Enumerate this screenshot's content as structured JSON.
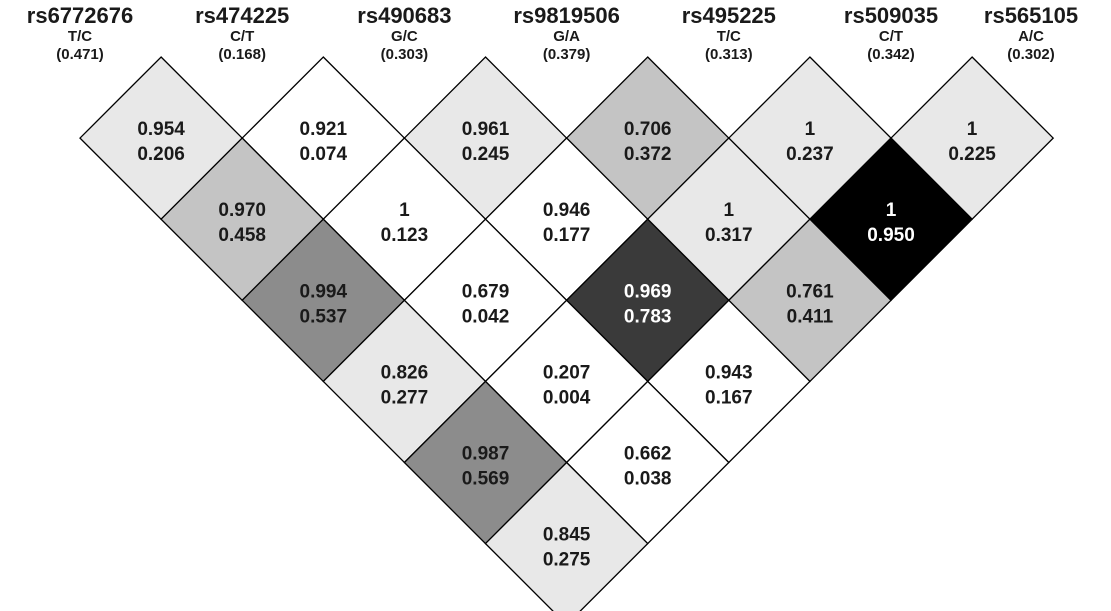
{
  "snps": [
    {
      "name": "rs6772676",
      "alleles": "T/C",
      "maf": "(0.471)"
    },
    {
      "name": "rs474225",
      "alleles": "C/T",
      "maf": "(0.168)"
    },
    {
      "name": "rs490683",
      "alleles": "G/C",
      "maf": "(0.303)"
    },
    {
      "name": "rs9819506",
      "alleles": "G/A",
      "maf": "(0.379)"
    },
    {
      "name": "rs495225",
      "alleles": "T/C",
      "maf": "(0.313)"
    },
    {
      "name": "rs509035",
      "alleles": "C/T",
      "maf": "(0.342)"
    },
    {
      "name": "rs565105",
      "alleles": "A/C",
      "maf": "(0.302)"
    }
  ],
  "cells": [
    {
      "i": 0,
      "j": 1,
      "d": "0.954",
      "r2": "0.206",
      "shade": "#e8e8e8",
      "text_color": "#1a1a1a"
    },
    {
      "i": 1,
      "j": 2,
      "d": "0.921",
      "r2": "0.074",
      "shade": "#ffffff",
      "text_color": "#1a1a1a"
    },
    {
      "i": 2,
      "j": 3,
      "d": "0.961",
      "r2": "0.245",
      "shade": "#e8e8e8",
      "text_color": "#1a1a1a"
    },
    {
      "i": 3,
      "j": 4,
      "d": "0.706",
      "r2": "0.372",
      "shade": "#c4c4c4",
      "text_color": "#1a1a1a"
    },
    {
      "i": 4,
      "j": 5,
      "d": "1",
      "r2": "0.237",
      "shade": "#e8e8e8",
      "text_color": "#1a1a1a"
    },
    {
      "i": 5,
      "j": 6,
      "d": "1",
      "r2": "0.225",
      "shade": "#e8e8e8",
      "text_color": "#1a1a1a"
    },
    {
      "i": 0,
      "j": 2,
      "d": "0.970",
      "r2": "0.458",
      "shade": "#c4c4c4",
      "text_color": "#1a1a1a"
    },
    {
      "i": 1,
      "j": 3,
      "d": "1",
      "r2": "0.123",
      "shade": "#ffffff",
      "text_color": "#1a1a1a"
    },
    {
      "i": 2,
      "j": 4,
      "d": "0.946",
      "r2": "0.177",
      "shade": "#ffffff",
      "text_color": "#1a1a1a"
    },
    {
      "i": 3,
      "j": 5,
      "d": "1",
      "r2": "0.317",
      "shade": "#e8e8e8",
      "text_color": "#1a1a1a"
    },
    {
      "i": 4,
      "j": 6,
      "d": "1",
      "r2": "0.950",
      "shade": "#000000",
      "text_color": "#ffffff"
    },
    {
      "i": 0,
      "j": 3,
      "d": "0.994",
      "r2": "0.537",
      "shade": "#8c8c8c",
      "text_color": "#1a1a1a"
    },
    {
      "i": 1,
      "j": 4,
      "d": "0.679",
      "r2": "0.042",
      "shade": "#ffffff",
      "text_color": "#1a1a1a"
    },
    {
      "i": 2,
      "j": 5,
      "d": "0.969",
      "r2": "0.783",
      "shade": "#3a3a3a",
      "text_color": "#ffffff"
    },
    {
      "i": 3,
      "j": 6,
      "d": "0.761",
      "r2": "0.411",
      "shade": "#c4c4c4",
      "text_color": "#1a1a1a"
    },
    {
      "i": 0,
      "j": 4,
      "d": "0.826",
      "r2": "0.277",
      "shade": "#e8e8e8",
      "text_color": "#1a1a1a"
    },
    {
      "i": 1,
      "j": 5,
      "d": "0.207",
      "r2": "0.004",
      "shade": "#ffffff",
      "text_color": "#1a1a1a"
    },
    {
      "i": 2,
      "j": 6,
      "d": "0.943",
      "r2": "0.167",
      "shade": "#ffffff",
      "text_color": "#1a1a1a"
    },
    {
      "i": 0,
      "j": 5,
      "d": "0.987",
      "r2": "0.569",
      "shade": "#8c8c8c",
      "text_color": "#1a1a1a"
    },
    {
      "i": 1,
      "j": 6,
      "d": "0.662",
      "r2": "0.038",
      "shade": "#ffffff",
      "text_color": "#1a1a1a"
    },
    {
      "i": 0,
      "j": 6,
      "d": "0.845",
      "r2": "0.275",
      "shade": "#e8e8e8",
      "text_color": "#1a1a1a"
    }
  ]
}
